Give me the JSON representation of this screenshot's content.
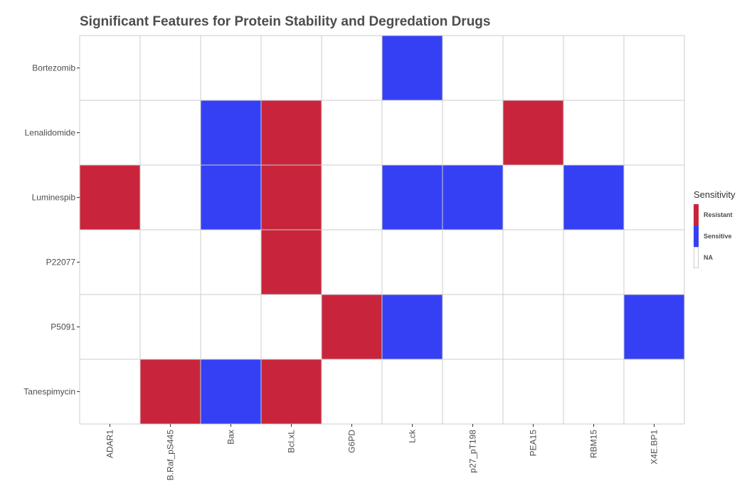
{
  "chart_data": {
    "type": "heatmap",
    "title": "Significant Features for Protein Stability and Degredation Drugs",
    "xlabel": "",
    "ylabel": "",
    "x_categories": [
      "ADAR1",
      "B.Raf_pS445",
      "Bax",
      "Bcl.xL",
      "G6PD",
      "Lck",
      "p27_pT198",
      "PEA15",
      "RBM15",
      "X4E.BP1"
    ],
    "y_categories": [
      "Bortezomib",
      "Lenalidomide",
      "Luminespib",
      "P22077",
      "P5091",
      "Tanespimycin"
    ],
    "cells": [
      {
        "drug": "Bortezomib",
        "feature": "Lck",
        "value": "Sensitive"
      },
      {
        "drug": "Lenalidomide",
        "feature": "Bax",
        "value": "Sensitive"
      },
      {
        "drug": "Lenalidomide",
        "feature": "Bcl.xL",
        "value": "Resistant"
      },
      {
        "drug": "Lenalidomide",
        "feature": "PEA15",
        "value": "Resistant"
      },
      {
        "drug": "Luminespib",
        "feature": "ADAR1",
        "value": "Resistant"
      },
      {
        "drug": "Luminespib",
        "feature": "Bax",
        "value": "Sensitive"
      },
      {
        "drug": "Luminespib",
        "feature": "Bcl.xL",
        "value": "Resistant"
      },
      {
        "drug": "Luminespib",
        "feature": "Lck",
        "value": "Sensitive"
      },
      {
        "drug": "Luminespib",
        "feature": "p27_pT198",
        "value": "Sensitive"
      },
      {
        "drug": "Luminespib",
        "feature": "RBM15",
        "value": "Sensitive"
      },
      {
        "drug": "P22077",
        "feature": "Bcl.xL",
        "value": "Resistant"
      },
      {
        "drug": "P5091",
        "feature": "G6PD",
        "value": "Resistant"
      },
      {
        "drug": "P5091",
        "feature": "Lck",
        "value": "Sensitive"
      },
      {
        "drug": "P5091",
        "feature": "X4E.BP1",
        "value": "Sensitive"
      },
      {
        "drug": "Tanespimycin",
        "feature": "B.Raf_pS445",
        "value": "Resistant"
      },
      {
        "drug": "Tanespimycin",
        "feature": "Bax",
        "value": "Sensitive"
      },
      {
        "drug": "Tanespimycin",
        "feature": "Bcl.xL",
        "value": "Resistant"
      }
    ],
    "legend": {
      "title": "Sensitivity",
      "position": "right",
      "items": [
        {
          "label": "Resistant",
          "color": "#C8253C"
        },
        {
          "label": "Sensitive",
          "color": "#3540F5"
        },
        {
          "label": "NA",
          "color": "#FFFFFF"
        }
      ]
    },
    "grid": true,
    "colors": {
      "Resistant": "#C8253C",
      "Sensitive": "#3540F5",
      "NA": "#FFFFFF",
      "grid": "#CCCCCC",
      "text": "#4D4D4D"
    }
  }
}
